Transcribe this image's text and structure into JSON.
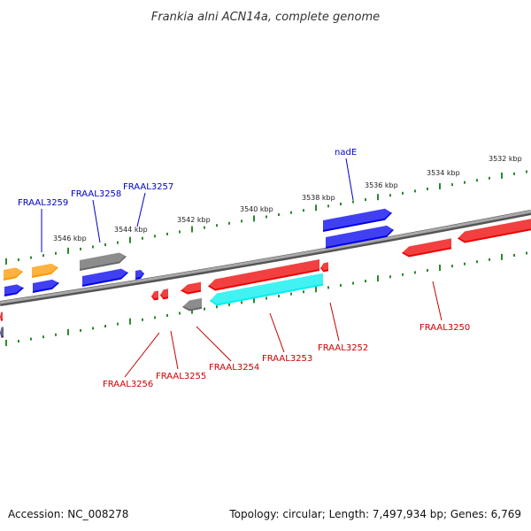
{
  "title": "Frankia alni ACN14a, complete genome",
  "footer": {
    "accession": "Accession: NC_008278",
    "topology": "Topology: circular; Length: 7,497,934 bp; Genes: 6,769"
  },
  "colors": {
    "backbone": "#7a7a7a",
    "ruler": "#2a8a2a",
    "blue_label": "#0000cc",
    "red_label": "#cc0000",
    "orange": "#ff9900",
    "blue": "#0000ee",
    "gray": "#666666",
    "red": "#ee0000",
    "cyan": "#00eeee"
  },
  "kbp_labels": [
    "3546 kbp",
    "3544 kbp",
    "3542 kbp",
    "3540 kbp",
    "3538 kbp",
    "3536 kbp",
    "3534 kbp",
    "3532 kbp"
  ],
  "genes_top": [
    {
      "name": "FRAAL3259"
    },
    {
      "name": "FRAAL3258"
    },
    {
      "name": "FRAAL3257"
    },
    {
      "name": "nadE"
    }
  ],
  "genes_bottom": [
    {
      "name": "FRAAL3256"
    },
    {
      "name": "FRAAL3255"
    },
    {
      "name": "FRAAL3254"
    },
    {
      "name": "FRAAL3253"
    },
    {
      "name": "FRAAL3252"
    },
    {
      "name": "FRAAL3250"
    }
  ]
}
